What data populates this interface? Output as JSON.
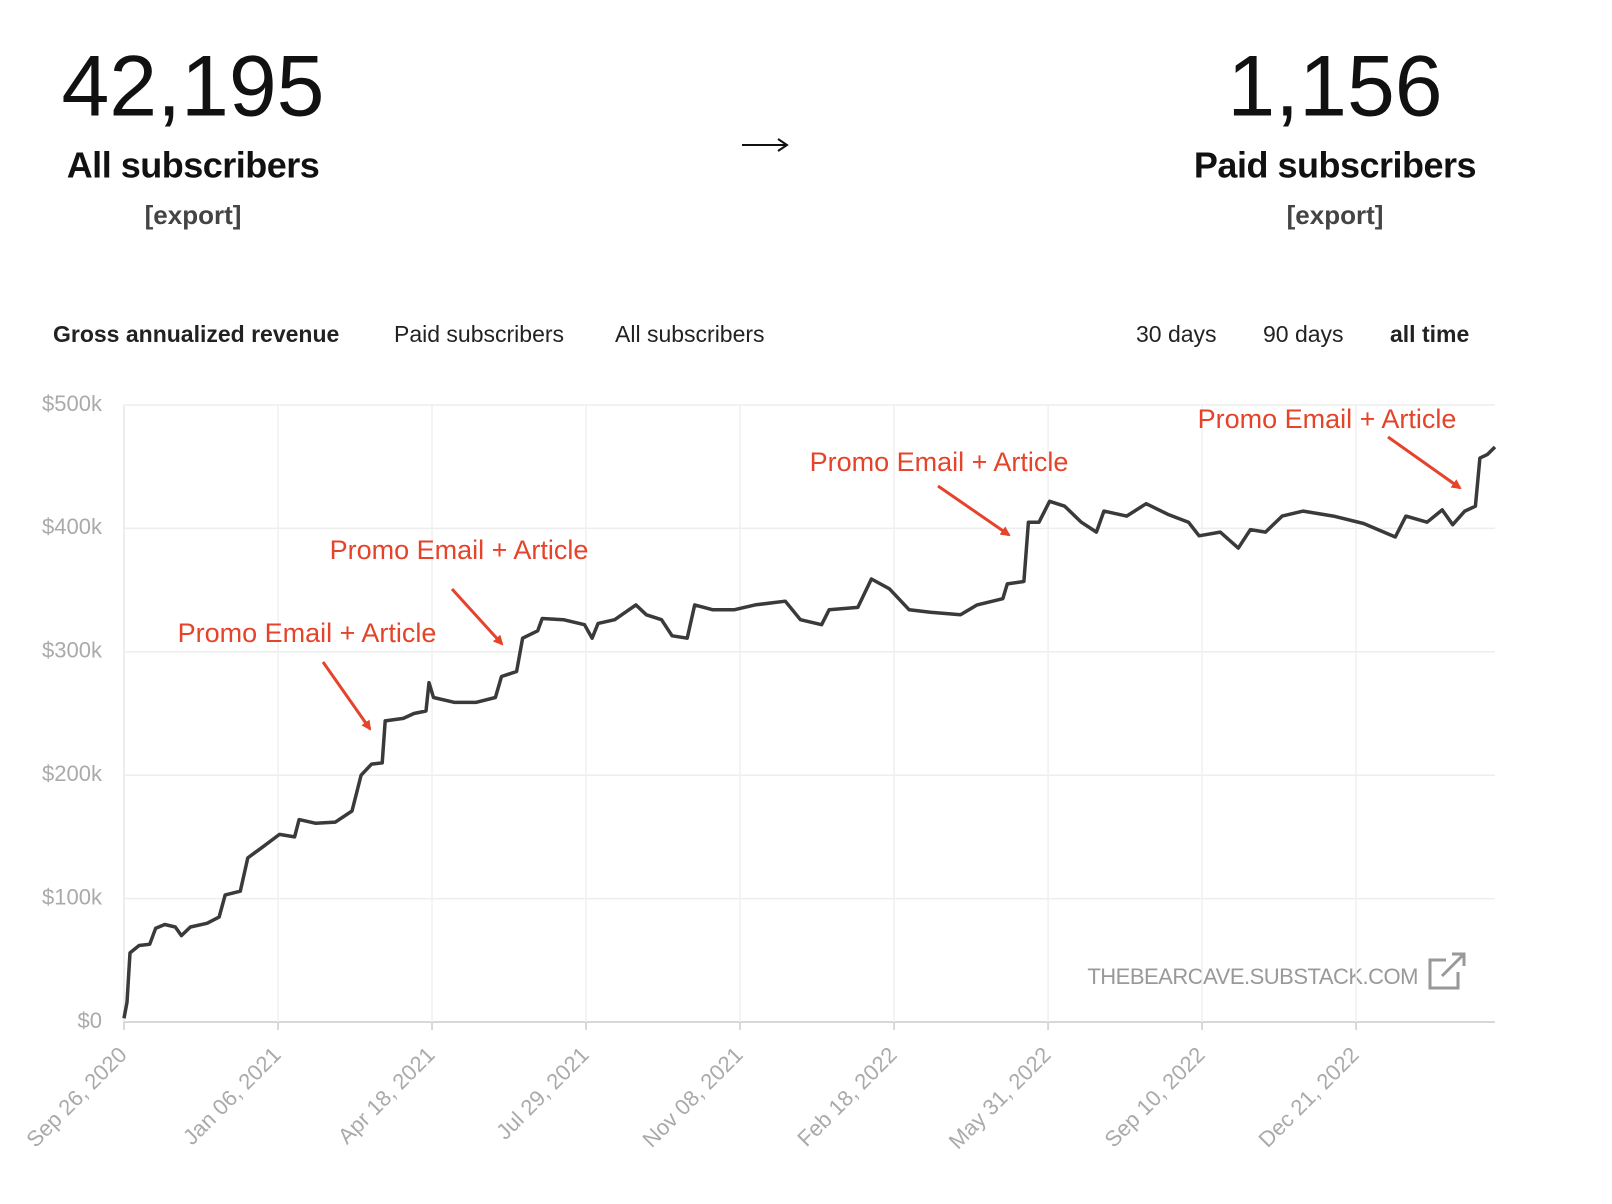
{
  "header": {
    "all": {
      "count": "42,195",
      "label": "All subscribers",
      "export": "[export]"
    },
    "paid": {
      "count": "1,156",
      "label": "Paid subscribers",
      "export": "[export]"
    }
  },
  "tabs": {
    "metrics": [
      "Gross annualized revenue",
      "Paid subscribers",
      "All subscribers"
    ],
    "ranges": [
      "30 days",
      "90 days",
      "all time"
    ]
  },
  "watermark": "THEBEARCAVE.SUBSTACK.COM",
  "chart_data": {
    "type": "line",
    "color": "#3a3a3a",
    "grid": true,
    "x": [
      "2020-09-26",
      "2020-09-28",
      "2020-09-30",
      "2020-10-06",
      "2020-10-13",
      "2020-10-17",
      "2020-10-23",
      "2020-10-30",
      "2020-11-03",
      "2020-11-09",
      "2020-11-20",
      "2020-11-28",
      "2020-12-02",
      "2020-12-12",
      "2020-12-17",
      "2020-12-27",
      "2021-01-07",
      "2021-01-17",
      "2021-01-20",
      "2021-01-31",
      "2021-02-13",
      "2021-02-24",
      "2021-03-02",
      "2021-03-09",
      "2021-03-16",
      "2021-03-18",
      "2021-03-30",
      "2021-04-06",
      "2021-04-14",
      "2021-04-16",
      "2021-04-19",
      "2021-05-03",
      "2021-05-17",
      "2021-05-30",
      "2021-06-03",
      "2021-06-13",
      "2021-06-17",
      "2021-06-27",
      "2021-06-30",
      "2021-07-14",
      "2021-07-28",
      "2021-08-02",
      "2021-08-06",
      "2021-08-17",
      "2021-08-31",
      "2021-09-07",
      "2021-09-17",
      "2021-09-24",
      "2021-10-04",
      "2021-10-09",
      "2021-10-21",
      "2021-11-04",
      "2021-11-18",
      "2021-12-08",
      "2021-12-18",
      "2022-01-01",
      "2022-01-06",
      "2022-01-25",
      "2022-02-03",
      "2022-02-15",
      "2022-02-28",
      "2022-03-14",
      "2022-04-03",
      "2022-04-14",
      "2022-05-01",
      "2022-05-04",
      "2022-05-15",
      "2022-05-18",
      "2022-05-25",
      "2022-06-01",
      "2022-06-11",
      "2022-06-22",
      "2022-07-02",
      "2022-07-07",
      "2022-07-22",
      "2022-08-04",
      "2022-08-19",
      "2022-09-01",
      "2022-09-08",
      "2022-09-22",
      "2022-10-04",
      "2022-10-12",
      "2022-10-22",
      "2022-11-02",
      "2022-11-16",
      "2022-12-06",
      "2022-12-26",
      "2023-01-16",
      "2023-01-23",
      "2023-02-06",
      "2023-02-16",
      "2023-02-23",
      "2023-03-03",
      "2023-03-10",
      "2023-03-13",
      "2023-03-18",
      "2023-03-23"
    ],
    "series": [
      {
        "name": "Gross annualized revenue",
        "color": "#3a3a3a",
        "values": [
          3000,
          16000,
          56000,
          62000,
          63000,
          76000,
          79000,
          77000,
          70000,
          77000,
          80000,
          85000,
          103000,
          106000,
          133000,
          142000,
          152000,
          150000,
          164000,
          161000,
          162000,
          171000,
          200000,
          209000,
          210000,
          244000,
          246000,
          250000,
          252000,
          275000,
          263000,
          259000,
          259000,
          263000,
          280000,
          284000,
          311000,
          317000,
          327000,
          326000,
          322000,
          311000,
          323000,
          326000,
          338000,
          330000,
          326000,
          313000,
          311000,
          338000,
          334000,
          334000,
          338000,
          341000,
          326000,
          322000,
          334000,
          336000,
          359000,
          351000,
          334000,
          332000,
          330000,
          338000,
          343000,
          355000,
          357000,
          405000,
          405000,
          422000,
          418000,
          405000,
          397000,
          414000,
          410000,
          420000,
          411000,
          405000,
          394000,
          397000,
          384000,
          399000,
          397000,
          410000,
          414000,
          410000,
          404000,
          393000,
          410000,
          405000,
          415000,
          403000,
          414000,
          418000,
          457000,
          460000,
          466000
        ]
      }
    ],
    "xlim": [
      "2020-09-26",
      "2023-03-23"
    ],
    "xticks": [
      {
        "value": "2020-09-26",
        "label": "Sep 26, 2020"
      },
      {
        "value": "2021-01-06",
        "label": "Jan 06, 2021"
      },
      {
        "value": "2021-04-18",
        "label": "Apr 18, 2021"
      },
      {
        "value": "2021-07-29",
        "label": "Jul 29, 2021"
      },
      {
        "value": "2021-11-08",
        "label": "Nov 08, 2021"
      },
      {
        "value": "2022-02-18",
        "label": "Feb 18, 2022"
      },
      {
        "value": "2022-05-31",
        "label": "May 31, 2022"
      },
      {
        "value": "2022-09-10",
        "label": "Sep 10, 2022"
      },
      {
        "value": "2022-12-21",
        "label": "Dec 21, 2022"
      }
    ],
    "ylim": [
      0,
      500000
    ],
    "yticks": [
      {
        "value": 0,
        "label": "$0"
      },
      {
        "value": 100000,
        "label": "$100k"
      },
      {
        "value": 200000,
        "label": "$200k"
      },
      {
        "value": 300000,
        "label": "$300k"
      },
      {
        "value": 400000,
        "label": "$400k"
      },
      {
        "value": 500000,
        "label": "$500k"
      }
    ],
    "annotations": [
      {
        "text": "Promo Email + Article"
      },
      {
        "text": "Promo Email + Article"
      },
      {
        "text": "Promo Email + Article"
      },
      {
        "text": "Promo Email + Article"
      }
    ]
  }
}
